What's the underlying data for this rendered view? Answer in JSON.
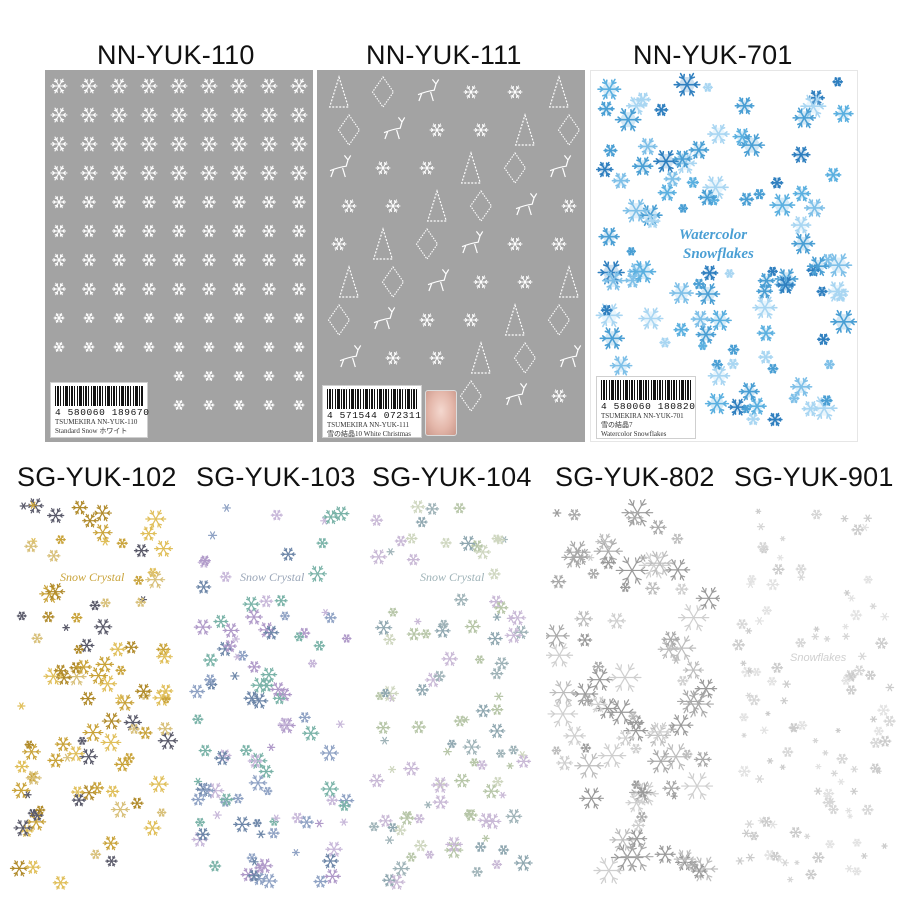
{
  "products_top": [
    {
      "code": "NN-YUK-110",
      "barcode": "4 580060 189670",
      "brand_line": "TSUMEKIRA   NN-YUK-110",
      "name_line": "Standard Snow ホワイト"
    },
    {
      "code": "NN-YUK-111",
      "barcode": "4 571544 072311",
      "brand_line": "TSUMEKIRA   NN-YUK-111",
      "name_line": "雪の結晶10 White Christmas"
    },
    {
      "code": "NN-YUK-701",
      "barcode": "4 580060 180820",
      "brand_line": "TSUMEKIRA   NN-YUK-701",
      "name_line": "雪の結晶7",
      "name_line2": "Watercolor Snowflakes",
      "sheet_title_1": "Watercolor",
      "sheet_title_2": "Snowflakes"
    }
  ],
  "products_bottom": [
    {
      "code": "SG-YUK-102",
      "sheet_title": "Snow Crystal",
      "tint": "#c9a33a"
    },
    {
      "code": "SG-YUK-103",
      "sheet_title": "Snow Crystal",
      "tint": "#8fa2c4"
    },
    {
      "code": "SG-YUK-104",
      "sheet_title": "Snow Crystal",
      "tint": "#9fb3b8"
    },
    {
      "code": "SG-YUK-802",
      "tint": "#b9b9b9"
    },
    {
      "code": "SG-YUK-901",
      "sheet_title": "Snowflakes",
      "tint": "#d6d6d6"
    }
  ],
  "colors": {
    "grey_sheet": "#a3a3a3",
    "white_flake": "#ffffff",
    "watercolor_blue": "#4a9fd4",
    "gold": "#c9a33a"
  },
  "icons": [
    "snowflake-icon",
    "reindeer-icon",
    "christmas-tree-icon",
    "damask-icon",
    "barcode-icon"
  ]
}
